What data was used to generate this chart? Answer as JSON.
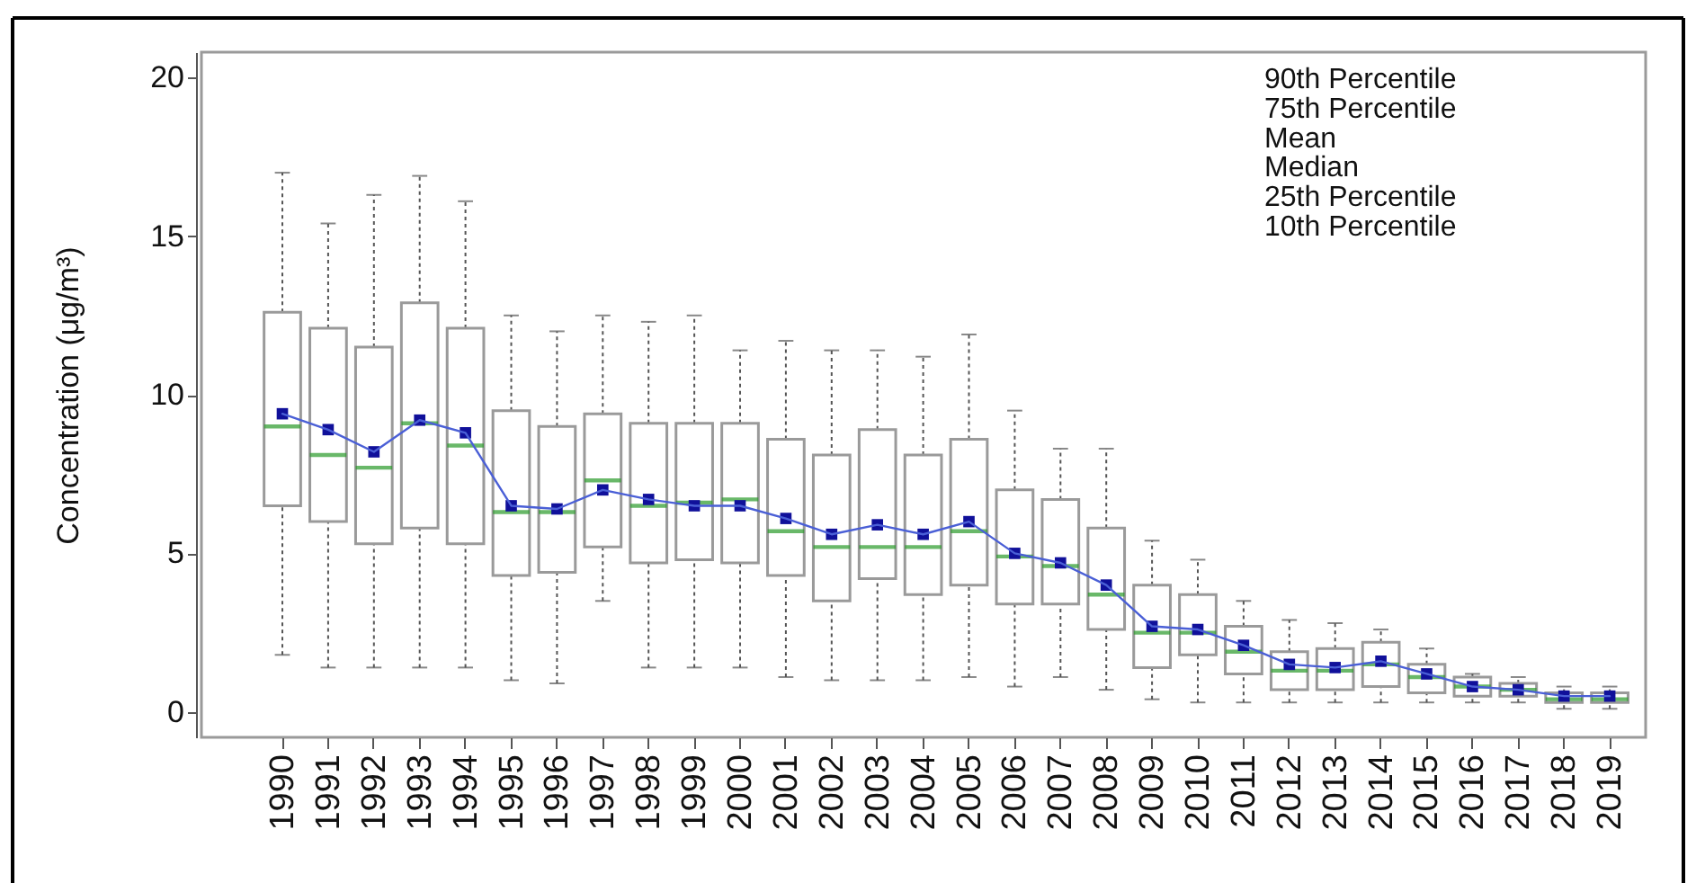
{
  "chart_data": {
    "type": "box",
    "ylabel": "Concentration (μg/m³)",
    "categories": [
      "1990",
      "1991",
      "1992",
      "1993",
      "1994",
      "1995",
      "1996",
      "1997",
      "1998",
      "1999",
      "2000",
      "2001",
      "2002",
      "2003",
      "2004",
      "2005",
      "2006",
      "2007",
      "2008",
      "2009",
      "2010",
      "2011",
      "2012",
      "2013",
      "2014",
      "2015",
      "2016",
      "2017",
      "2018",
      "2019"
    ],
    "ylim": [
      -0.8,
      20.8
    ],
    "yticks": [
      0,
      5,
      10,
      15,
      20
    ],
    "annotations": [
      "90th Percentile",
      "75th Percentile",
      "Mean",
      "Median",
      "25th Percentile",
      "10th Percentile"
    ],
    "series": [
      {
        "type": "box",
        "color": "#9a9a9a",
        "boxes": [
          {
            "low": 1.8,
            "q1": 6.5,
            "median": 9.0,
            "q3": 12.6,
            "high": 17.0,
            "mean": 9.4
          },
          {
            "low": 1.4,
            "q1": 6.0,
            "median": 8.1,
            "q3": 12.1,
            "high": 15.4,
            "mean": 8.9
          },
          {
            "low": 1.4,
            "q1": 5.3,
            "median": 7.7,
            "q3": 11.5,
            "high": 16.3,
            "mean": 8.2
          },
          {
            "low": 1.4,
            "q1": 5.8,
            "median": 9.1,
            "q3": 12.9,
            "high": 16.9,
            "mean": 9.2
          },
          {
            "low": 1.4,
            "q1": 5.3,
            "median": 8.4,
            "q3": 12.1,
            "high": 16.1,
            "mean": 8.8
          },
          {
            "low": 1.0,
            "q1": 4.3,
            "median": 6.3,
            "q3": 9.5,
            "high": 12.5,
            "mean": 6.5
          },
          {
            "low": 0.9,
            "q1": 4.4,
            "median": 6.3,
            "q3": 9.0,
            "high": 12.0,
            "mean": 6.4
          },
          {
            "low": 3.5,
            "q1": 5.2,
            "median": 7.3,
            "q3": 9.4,
            "high": 12.5,
            "mean": 7.0
          },
          {
            "low": 1.4,
            "q1": 4.7,
            "median": 6.5,
            "q3": 9.1,
            "high": 12.3,
            "mean": 6.7
          },
          {
            "low": 1.4,
            "q1": 4.8,
            "median": 6.6,
            "q3": 9.1,
            "high": 12.5,
            "mean": 6.5
          },
          {
            "low": 1.4,
            "q1": 4.7,
            "median": 6.7,
            "q3": 9.1,
            "high": 11.4,
            "mean": 6.5
          },
          {
            "low": 1.1,
            "q1": 4.3,
            "median": 5.7,
            "q3": 8.6,
            "high": 11.7,
            "mean": 6.1
          },
          {
            "low": 1.0,
            "q1": 3.5,
            "median": 5.2,
            "q3": 8.1,
            "high": 11.4,
            "mean": 5.6
          },
          {
            "low": 1.0,
            "q1": 4.2,
            "median": 5.2,
            "q3": 8.9,
            "high": 11.4,
            "mean": 5.9
          },
          {
            "low": 1.0,
            "q1": 3.7,
            "median": 5.2,
            "q3": 8.1,
            "high": 11.2,
            "mean": 5.6
          },
          {
            "low": 1.1,
            "q1": 4.0,
            "median": 5.7,
            "q3": 8.6,
            "high": 11.9,
            "mean": 6.0
          },
          {
            "low": 0.8,
            "q1": 3.4,
            "median": 4.9,
            "q3": 7.0,
            "high": 9.5,
            "mean": 5.0
          },
          {
            "low": 1.1,
            "q1": 3.4,
            "median": 4.6,
            "q3": 6.7,
            "high": 8.3,
            "mean": 4.7
          },
          {
            "low": 0.7,
            "q1": 2.6,
            "median": 3.7,
            "q3": 5.8,
            "high": 8.3,
            "mean": 4.0
          },
          {
            "low": 0.4,
            "q1": 1.4,
            "median": 2.5,
            "q3": 4.0,
            "high": 5.4,
            "mean": 2.7
          },
          {
            "low": 0.3,
            "q1": 1.8,
            "median": 2.5,
            "q3": 3.7,
            "high": 4.8,
            "mean": 2.6
          },
          {
            "low": 0.3,
            "q1": 1.2,
            "median": 1.9,
            "q3": 2.7,
            "high": 3.5,
            "mean": 2.1
          },
          {
            "low": 0.3,
            "q1": 0.7,
            "median": 1.3,
            "q3": 1.9,
            "high": 2.9,
            "mean": 1.5
          },
          {
            "low": 0.3,
            "q1": 0.7,
            "median": 1.3,
            "q3": 2.0,
            "high": 2.8,
            "mean": 1.4
          },
          {
            "low": 0.3,
            "q1": 0.8,
            "median": 1.5,
            "q3": 2.2,
            "high": 2.6,
            "mean": 1.6
          },
          {
            "low": 0.3,
            "q1": 0.6,
            "median": 1.1,
            "q3": 1.5,
            "high": 2.0,
            "mean": 1.2
          },
          {
            "low": 0.3,
            "q1": 0.5,
            "median": 0.8,
            "q3": 1.1,
            "high": 1.2,
            "mean": 0.8
          },
          {
            "low": 0.3,
            "q1": 0.5,
            "median": 0.7,
            "q3": 0.9,
            "high": 1.1,
            "mean": 0.7
          },
          {
            "low": 0.1,
            "q1": 0.3,
            "median": 0.4,
            "q3": 0.6,
            "high": 0.8,
            "mean": 0.5
          },
          {
            "low": 0.1,
            "q1": 0.3,
            "median": 0.4,
            "q3": 0.6,
            "high": 0.8,
            "mean": 0.5
          }
        ]
      },
      {
        "type": "line",
        "color": "#4a5fd6",
        "marker": "none",
        "values": [
          9.4,
          8.9,
          8.2,
          9.2,
          8.8,
          6.5,
          6.4,
          7.0,
          6.7,
          6.5,
          6.5,
          6.1,
          5.6,
          5.9,
          5.6,
          6.0,
          5.0,
          4.7,
          4.0,
          2.7,
          2.6,
          2.1,
          1.5,
          1.4,
          1.6,
          1.2,
          0.8,
          0.7,
          0.5,
          0.5
        ]
      }
    ]
  }
}
